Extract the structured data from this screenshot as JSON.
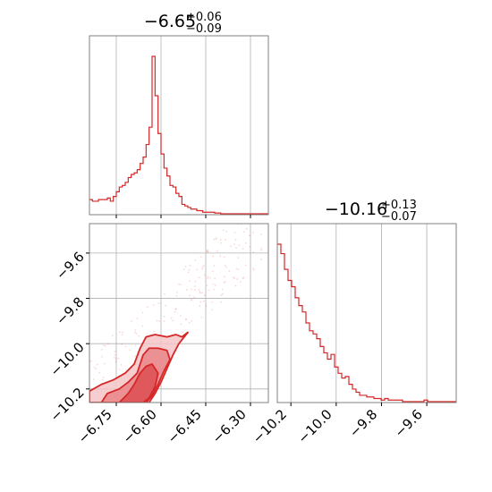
{
  "colors": {
    "series": "#d62728",
    "fill_light": "#f4c6c7",
    "fill_mid": "#e98688",
    "fill_dark": "#dd4f52",
    "grid": "#b0b0b0",
    "frame": "#808080"
  },
  "chart_data": [
    {
      "type": "histogram",
      "panel": "top-left",
      "title": {
        "center": "−6.65",
        "upper": "+0.06",
        "lower": "−0.09"
      },
      "x_range": [
        -6.84,
        -6.24
      ],
      "x_ticks": [
        -6.75,
        -6.6,
        -6.45,
        -6.3
      ],
      "grid": true,
      "bin_width": 0.01,
      "bin_start": -6.84,
      "density": [
        0.09,
        0.08,
        0.08,
        0.09,
        0.09,
        0.09,
        0.1,
        0.08,
        0.11,
        0.14,
        0.17,
        0.18,
        0.2,
        0.23,
        0.25,
        0.26,
        0.28,
        0.32,
        0.36,
        0.44,
        0.55,
        1.0,
        0.75,
        0.51,
        0.38,
        0.29,
        0.24,
        0.18,
        0.17,
        0.13,
        0.11,
        0.06,
        0.05,
        0.04,
        0.03,
        0.03,
        0.02,
        0.02,
        0.01,
        0.01,
        0.01,
        0.01,
        0.005,
        0.005,
        0.0,
        0.0,
        0.0,
        0.0,
        0.0,
        0.0,
        0.0,
        0.0,
        0.0,
        0.0,
        0.0,
        0.0,
        0.0,
        0.0,
        0.0,
        0.0
      ]
    },
    {
      "type": "histogram",
      "panel": "bottom-right",
      "title": {
        "center": "−10.16",
        "upper": "+0.13",
        "lower": "−0.07"
      },
      "x_range": [
        -10.26,
        -9.47
      ],
      "x_ticks": [
        -10.2,
        -10.0,
        -9.8,
        -9.6
      ],
      "x_tick_labels": [
        "−10.2",
        "−10.0",
        "−9.8",
        "−9.6"
      ],
      "grid": true,
      "bin_width": 0.0158,
      "bin_start": -10.26,
      "density": [
        1.0,
        0.94,
        0.84,
        0.77,
        0.73,
        0.66,
        0.61,
        0.57,
        0.5,
        0.45,
        0.43,
        0.4,
        0.35,
        0.31,
        0.27,
        0.3,
        0.22,
        0.18,
        0.15,
        0.16,
        0.11,
        0.08,
        0.06,
        0.04,
        0.04,
        0.03,
        0.03,
        0.02,
        0.02,
        0.01,
        0.02,
        0.01,
        0.01,
        0.01,
        0.01,
        0.0,
        0.0,
        0.0,
        0.0,
        0.0,
        0.0,
        0.01,
        0.0,
        0.0,
        0.0,
        0.0,
        0.0,
        0.0,
        0.0,
        0.0
      ]
    },
    {
      "type": "contour",
      "panel": "bottom-left",
      "x_range": [
        -6.84,
        -6.24
      ],
      "y_range": [
        -10.26,
        -9.47
      ],
      "x_ticks": [
        -6.75,
        -6.6,
        -6.45,
        -6.3
      ],
      "x_tick_labels": [
        "−6.75",
        "−6.60",
        "−6.45",
        "−6.30"
      ],
      "y_ticks": [
        -9.6,
        -9.8,
        -10.0,
        -10.2
      ],
      "y_tick_labels": [
        "−9.6",
        "−9.8",
        "−10.0",
        "−10.2"
      ],
      "grid": true,
      "levels": [
        {
          "level": "outer",
          "points": [
            [
              -6.84,
              -10.26
            ],
            [
              -6.84,
              -10.21
            ],
            [
              -6.8,
              -10.18
            ],
            [
              -6.76,
              -10.16
            ],
            [
              -6.72,
              -10.13
            ],
            [
              -6.69,
              -10.09
            ],
            [
              -6.67,
              -10.02
            ],
            [
              -6.65,
              -9.97
            ],
            [
              -6.62,
              -9.96
            ],
            [
              -6.58,
              -9.97
            ],
            [
              -6.55,
              -9.96
            ],
            [
              -6.53,
              -9.97
            ],
            [
              -6.51,
              -9.95
            ],
            [
              -6.54,
              -10.0
            ],
            [
              -6.56,
              -10.05
            ],
            [
              -6.58,
              -10.11
            ],
            [
              -6.6,
              -10.17
            ],
            [
              -6.62,
              -10.22
            ],
            [
              -6.64,
              -10.26
            ]
          ]
        },
        {
          "level": "middle",
          "points": [
            [
              -6.8,
              -10.26
            ],
            [
              -6.78,
              -10.22
            ],
            [
              -6.74,
              -10.2
            ],
            [
              -6.71,
              -10.17
            ],
            [
              -6.68,
              -10.13
            ],
            [
              -6.66,
              -10.05
            ],
            [
              -6.64,
              -10.02
            ],
            [
              -6.61,
              -10.02
            ],
            [
              -6.58,
              -10.03
            ],
            [
              -6.57,
              -10.07
            ],
            [
              -6.59,
              -10.12
            ],
            [
              -6.61,
              -10.18
            ],
            [
              -6.63,
              -10.23
            ],
            [
              -6.65,
              -10.26
            ]
          ]
        },
        {
          "level": "inner",
          "points": [
            [
              -6.74,
              -10.26
            ],
            [
              -6.71,
              -10.22
            ],
            [
              -6.69,
              -10.18
            ],
            [
              -6.67,
              -10.13
            ],
            [
              -6.65,
              -10.1
            ],
            [
              -6.63,
              -10.09
            ],
            [
              -6.61,
              -10.13
            ],
            [
              -6.62,
              -10.19
            ],
            [
              -6.64,
              -10.24
            ],
            [
              -6.66,
              -10.26
            ]
          ]
        }
      ]
    }
  ]
}
